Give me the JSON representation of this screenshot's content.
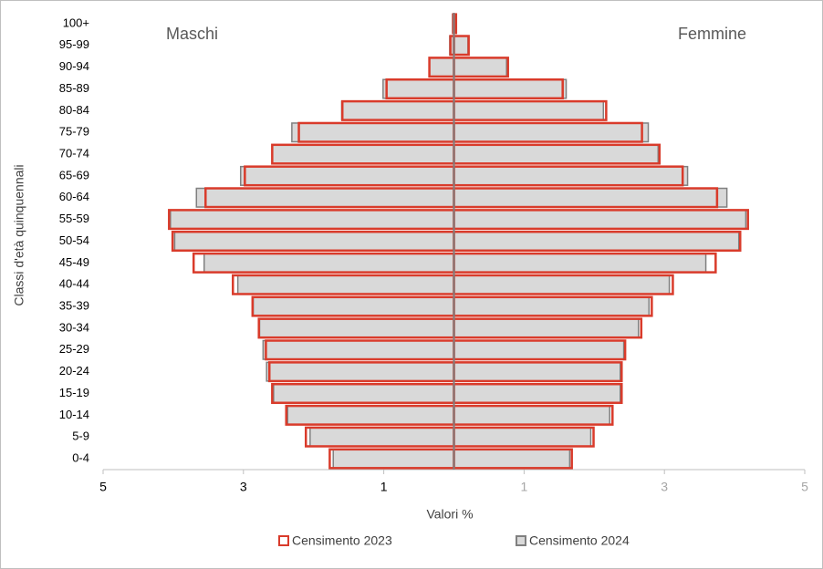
{
  "chart_data": {
    "type": "pyramid",
    "left_label": "Maschi",
    "right_label": "Femmine",
    "xlabel": "Valori %",
    "ylabel": "Classi d'età quinquennali",
    "categories": [
      "0-4",
      "5-9",
      "10-14",
      "15-19",
      "20-24",
      "25-29",
      "30-34",
      "35-39",
      "40-44",
      "45-49",
      "50-54",
      "55-59",
      "60-64",
      "65-69",
      "70-74",
      "75-79",
      "80-84",
      "85-89",
      "90-94",
      "95-99",
      "100+"
    ],
    "series": [
      {
        "name": "Censimento 2023",
        "color": "#d93b2b",
        "left": [
          -1.77,
          -2.11,
          -2.39,
          -2.59,
          -2.63,
          -2.68,
          -2.78,
          -2.87,
          -3.15,
          -3.71,
          -4.01,
          -4.06,
          -3.54,
          -2.98,
          -2.59,
          -2.21,
          -1.59,
          -0.96,
          -0.35,
          -0.05,
          -0.01
        ],
        "right": [
          1.68,
          1.99,
          2.26,
          2.39,
          2.39,
          2.44,
          2.67,
          2.82,
          3.12,
          3.73,
          4.08,
          4.19,
          3.75,
          3.26,
          2.93,
          2.68,
          2.17,
          1.55,
          0.77,
          0.21,
          0.03
        ]
      },
      {
        "name": "Censimento 2024",
        "color": "#808080",
        "left": [
          -1.72,
          -2.05,
          -2.37,
          -2.57,
          -2.67,
          -2.72,
          -2.77,
          -2.86,
          -3.08,
          -3.56,
          -3.98,
          -4.04,
          -3.67,
          -3.04,
          -2.59,
          -2.31,
          -1.6,
          -1.01,
          -0.35,
          -0.06,
          -0.02
        ],
        "right": [
          1.65,
          1.95,
          2.22,
          2.37,
          2.37,
          2.42,
          2.63,
          2.78,
          3.07,
          3.59,
          4.06,
          4.16,
          3.89,
          3.33,
          2.91,
          2.77,
          2.13,
          1.6,
          0.75,
          0.2,
          0.03
        ]
      }
    ],
    "xlim": [
      -5,
      5
    ],
    "xticks": [
      {
        "value": -5,
        "label": "5"
      },
      {
        "value": -3,
        "label": "3"
      },
      {
        "value": -1,
        "label": "1"
      },
      1,
      3,
      5
    ]
  }
}
